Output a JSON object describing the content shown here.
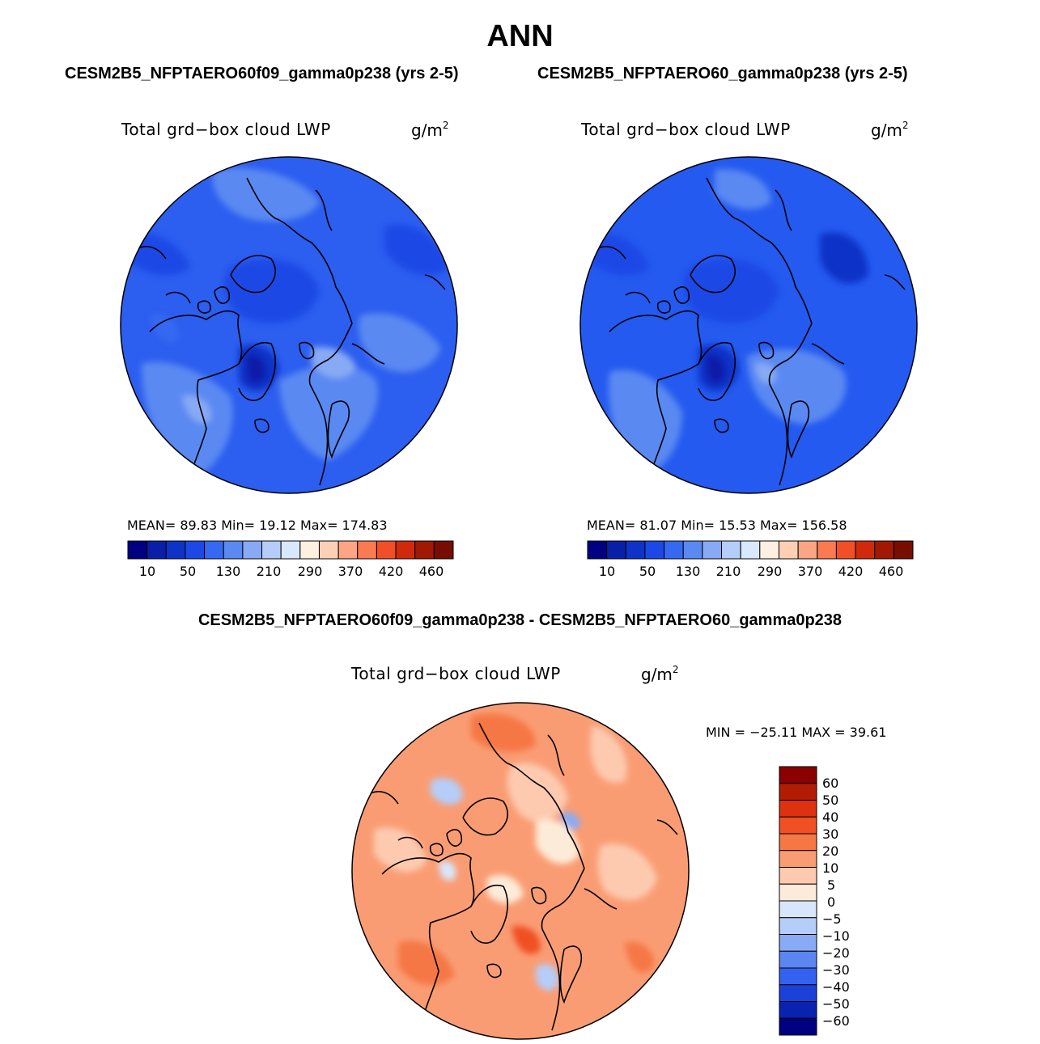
{
  "title": "ANN",
  "panels": [
    {
      "case_title": "CESM2B5_NFPTAERO60f09_gamma0p238 (yrs 2-5)",
      "variable": "Total grd−box cloud LWP",
      "units": "g/m",
      "units_exp": "2",
      "stats": "MEAN=   89.83   Min=    19.12   Max=  174.83",
      "colorbar_ticks": [
        "10",
        "50",
        "130",
        "210",
        "290",
        "370",
        "420",
        "460"
      ]
    },
    {
      "case_title": "CESM2B5_NFPTAERO60_gamma0p238 (yrs 2-5)",
      "variable": "Total grd−box cloud LWP",
      "units": "g/m",
      "units_exp": "2",
      "stats": "MEAN=   81.07   Min=    15.53   Max=  156.58",
      "colorbar_ticks": [
        "10",
        "50",
        "130",
        "210",
        "290",
        "370",
        "420",
        "460"
      ]
    }
  ],
  "difference": {
    "title": "CESM2B5_NFPTAERO60f09_gamma0p238 - CESM2B5_NFPTAERO60_gamma0p238",
    "variable": "Total grd−box cloud LWP",
    "units": "g/m",
    "units_exp": "2",
    "stats": "MIN = −25.11  MAX =   39.61",
    "colorbar_labels": [
      "60",
      "50",
      "40",
      "30",
      "20",
      "10",
      "5",
      "0",
      "−5",
      "−10",
      "−20",
      "−30",
      "−40",
      "−50",
      "−60"
    ]
  },
  "chart_data": [
    {
      "type": "heatmap",
      "projection": "north polar stereographic",
      "title": "Total grd−box cloud LWP",
      "case": "CESM2B5_NFPTAERO60f09_gamma0p238 (yrs 2-5)",
      "units": "g/m2",
      "mean": 89.83,
      "min": 19.12,
      "max": 174.83,
      "colorbar_ticks": [
        10,
        50,
        130,
        210,
        290,
        370,
        420,
        460
      ],
      "levels_count": 16
    },
    {
      "type": "heatmap",
      "projection": "north polar stereographic",
      "title": "Total grd−box cloud LWP",
      "case": "CESM2B5_NFPTAERO60_gamma0p238 (yrs 2-5)",
      "units": "g/m2",
      "mean": 81.07,
      "min": 15.53,
      "max": 156.58,
      "colorbar_ticks": [
        10,
        50,
        130,
        210,
        290,
        370,
        420,
        460
      ],
      "levels_count": 16
    },
    {
      "type": "heatmap",
      "projection": "north polar stereographic",
      "title": "Total grd−box cloud LWP",
      "case": "CESM2B5_NFPTAERO60f09_gamma0p238 - CESM2B5_NFPTAERO60_gamma0p238",
      "units": "g/m2",
      "min": -25.11,
      "max": 39.61,
      "levels": [
        -60,
        -50,
        -40,
        -30,
        -20,
        -10,
        -5,
        0,
        5,
        10,
        20,
        30,
        40,
        50,
        60
      ]
    }
  ],
  "colors": {
    "seq_colorbar": [
      "#000080",
      "#0a1fa8",
      "#0f33c7",
      "#1c48e6",
      "#3569f2",
      "#5a89f2",
      "#88aaf5",
      "#b5cdf9",
      "#d9e9fd",
      "#fdf0e1",
      "#fdd0b5",
      "#fca585",
      "#fa7a52",
      "#f04f27",
      "#cf2a0d",
      "#a11804",
      "#760d00"
    ],
    "div_colorbar": [
      "#8b0000",
      "#b21c04",
      "#dc3210",
      "#f05023",
      "#f57744",
      "#fa9c73",
      "#fdcab0",
      "#fdebd9",
      "#d8e6fb",
      "#b5cdf9",
      "#89abf5",
      "#5b86f2",
      "#3462f0",
      "#1c41d9",
      "#0a22b0",
      "#000080"
    ]
  }
}
